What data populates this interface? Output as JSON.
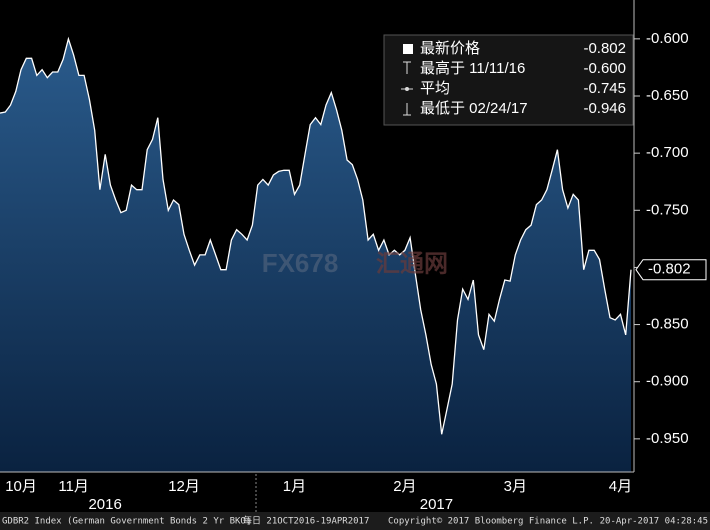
{
  "chart_data": {
    "type": "area",
    "values": [
      -0.665,
      -0.664,
      -0.658,
      -0.646,
      -0.627,
      -0.617,
      -0.617,
      -0.632,
      -0.627,
      -0.634,
      -0.629,
      -0.629,
      -0.618,
      -0.6,
      -0.614,
      -0.632,
      -0.632,
      -0.653,
      -0.68,
      -0.732,
      -0.701,
      -0.728,
      -0.741,
      -0.752,
      -0.75,
      -0.728,
      -0.732,
      -0.732,
      -0.697,
      -0.688,
      -0.669,
      -0.723,
      -0.75,
      -0.741,
      -0.745,
      -0.771,
      -0.785,
      -0.798,
      -0.789,
      -0.789,
      -0.776,
      -0.789,
      -0.802,
      -0.802,
      -0.776,
      -0.767,
      -0.771,
      -0.776,
      -0.763,
      -0.728,
      -0.723,
      -0.728,
      -0.719,
      -0.716,
      -0.715,
      -0.715,
      -0.736,
      -0.728,
      -0.701,
      -0.675,
      -0.669,
      -0.675,
      -0.658,
      -0.647,
      -0.662,
      -0.68,
      -0.706,
      -0.71,
      -0.723,
      -0.741,
      -0.776,
      -0.771,
      -0.785,
      -0.776,
      -0.789,
      -0.785,
      -0.789,
      -0.785,
      -0.774,
      -0.806,
      -0.837,
      -0.859,
      -0.885,
      -0.902,
      -0.946,
      -0.924,
      -0.902,
      -0.846,
      -0.819,
      -0.828,
      -0.811,
      -0.859,
      -0.872,
      -0.841,
      -0.847,
      -0.828,
      -0.811,
      -0.812,
      -0.789,
      -0.776,
      -0.767,
      -0.763,
      -0.745,
      -0.741,
      -0.732,
      -0.715,
      -0.697,
      -0.732,
      -0.748,
      -0.736,
      -0.741,
      -0.802,
      -0.785,
      -0.785,
      -0.793,
      -0.819,
      -0.844,
      -0.846,
      -0.841,
      -0.859,
      -0.802
    ],
    "categories": [
      null,
      null,
      null,
      null,
      "10月",
      null,
      null,
      null,
      null,
      null,
      null,
      null,
      null,
      null,
      "11月",
      null,
      null,
      null,
      null,
      null,
      null,
      null,
      null,
      null,
      null,
      null,
      null,
      null,
      null,
      null,
      null,
      null,
      null,
      null,
      null,
      "12月",
      null,
      null,
      null,
      null,
      null,
      null,
      null,
      null,
      null,
      null,
      null,
      null,
      null,
      null,
      null,
      null,
      null,
      null,
      null,
      null,
      "1月",
      null,
      null,
      null,
      null,
      null,
      null,
      null,
      null,
      null,
      null,
      null,
      null,
      null,
      null,
      null,
      null,
      null,
      null,
      null,
      null,
      "2月",
      null,
      null,
      null,
      null,
      null,
      null,
      null,
      null,
      null,
      null,
      null,
      null,
      null,
      null,
      null,
      null,
      null,
      null,
      null,
      null,
      "3月",
      null,
      null,
      null,
      null,
      null,
      null,
      null,
      null,
      null,
      null,
      null,
      null,
      null,
      null,
      null,
      null,
      null,
      null,
      null,
      "4月",
      null,
      null
    ],
    "year_categories": [
      null,
      null,
      null,
      null,
      null,
      null,
      null,
      null,
      null,
      null,
      null,
      null,
      null,
      null,
      null,
      null,
      null,
      null,
      null,
      null,
      "2016",
      null,
      null,
      null,
      null,
      null,
      null,
      null,
      null,
      null,
      null,
      null,
      null,
      null,
      null,
      null,
      null,
      null,
      null,
      null,
      null,
      null,
      null,
      null,
      null,
      null,
      null,
      null,
      null,
      null,
      null,
      null,
      null,
      null,
      null,
      null,
      null,
      null,
      null,
      null,
      null,
      null,
      null,
      null,
      null,
      null,
      null,
      null,
      null,
      null,
      null,
      null,
      null,
      null,
      null,
      null,
      null,
      null,
      null,
      null,
      null,
      null,
      null,
      "2017",
      null,
      null,
      null,
      null,
      null,
      null,
      null,
      null,
      null,
      null,
      null,
      null,
      null,
      null,
      null,
      null,
      null,
      null,
      null,
      null,
      null,
      null,
      null,
      null,
      null,
      null,
      null,
      null,
      null,
      null,
      null,
      null,
      null,
      null,
      null,
      null,
      null,
      null,
      null,
      null,
      null,
      null,
      null,
      null,
      null,
      null,
      null,
      null,
      null,
      null,
      null,
      null
    ],
    "color": "#ffffff",
    "ylim": [
      -0.979,
      -0.566
    ],
    "yticks": [
      {
        "value": -0.6,
        "label": "-0.600"
      },
      {
        "value": -0.65,
        "label": "-0.650"
      },
      {
        "value": -0.7,
        "label": "-0.700"
      },
      {
        "value": -0.75,
        "label": "-0.750"
      },
      {
        "value": -0.8,
        "label": "-0.800"
      },
      {
        "value": -0.85,
        "label": "-0.850"
      },
      {
        "value": -0.9,
        "label": "-0.900"
      },
      {
        "value": -0.95,
        "label": "-0.950"
      }
    ],
    "stats": [
      {
        "label": "最新价格",
        "value": -0.802
      },
      {
        "label": "最高于 11/11/16",
        "value": -0.6,
        "value_label": "-0.600"
      },
      {
        "label": "平均",
        "value": -0.745
      },
      {
        "label": "最低于 02/24/17",
        "value": -0.946
      }
    ]
  },
  "watermark": {
    "brand": "FX678",
    "name": "汇通网"
  },
  "footer": {
    "security": "GDBR2 Index (German Government Bonds 2 Yr BKO)",
    "period": "每日 21OCT2016-19APR2017",
    "copyright": "Copyright© 2017 Bloomberg Finance L.P.",
    "timestamp": "20-Apr-2017 04:28:45"
  }
}
